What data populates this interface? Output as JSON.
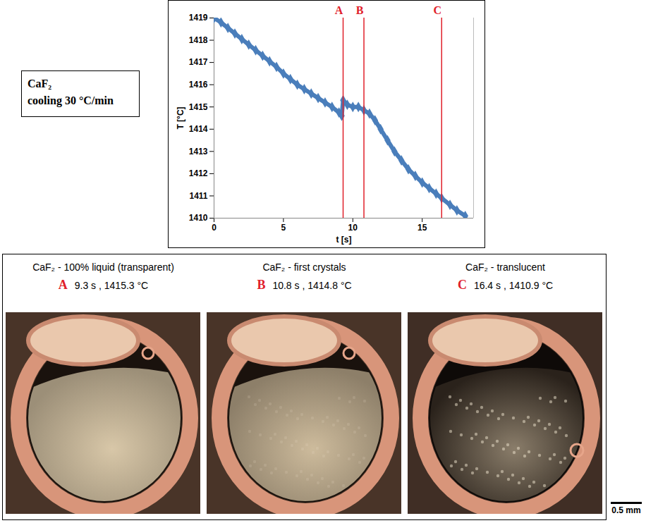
{
  "chart_data": {
    "type": "line",
    "marker": "diamond",
    "color": "#4a7ebb",
    "x_label": "t [s]",
    "y_label": "T [°C]",
    "x": [
      0,
      0.5,
      1,
      1.5,
      2,
      2.5,
      3,
      3.5,
      4,
      4.5,
      5,
      5.5,
      6,
      6.5,
      7,
      7.5,
      8,
      8.5,
      9,
      9.2,
      9.3,
      9.6,
      10,
      10.4,
      10.8,
      11.2,
      11.6,
      12,
      12.5,
      13,
      13.5,
      14,
      14.5,
      15,
      15.5,
      16,
      16.4,
      17,
      17.5,
      18.1
    ],
    "values": [
      1419.0,
      1418.8,
      1418.55,
      1418.3,
      1418.05,
      1417.8,
      1417.55,
      1417.3,
      1417.05,
      1416.8,
      1416.5,
      1416.25,
      1416.0,
      1415.8,
      1415.6,
      1415.4,
      1415.2,
      1415.0,
      1414.75,
      1414.6,
      1415.3,
      1415.1,
      1415.0,
      1415.0,
      1414.85,
      1414.7,
      1414.4,
      1414.0,
      1413.5,
      1413.0,
      1412.6,
      1412.2,
      1411.9,
      1411.6,
      1411.35,
      1411.1,
      1410.9,
      1410.6,
      1410.35,
      1410.1
    ],
    "xlim": [
      0,
      18.7
    ],
    "xticks": [
      0,
      5,
      10,
      15
    ],
    "ylim": [
      1410,
      1419
    ],
    "yticks": [
      1410,
      1411,
      1412,
      1413,
      1414,
      1415,
      1416,
      1417,
      1418,
      1419
    ],
    "grid": false,
    "events": [
      {
        "label": "A",
        "x": 9.3,
        "color": "#e0202a"
      },
      {
        "label": "B",
        "x": 10.8,
        "color": "#e0202a"
      },
      {
        "label": "C",
        "x": 16.4,
        "color": "#e0202a"
      }
    ]
  },
  "label_box": {
    "lines": [
      "CaF₂",
      "cooling 30 °C/min"
    ]
  },
  "photo_panels": [
    {
      "caption": "CaF₂ - 100% liquid (transparent)",
      "letter": "A",
      "reading": "9.3 s , 1415.3 °C"
    },
    {
      "caption": "CaF₂ - first crystals",
      "letter": "B",
      "reading": "10.8 s , 1414.8 °C"
    },
    {
      "caption": "CaF₂ - translucent",
      "letter": "C",
      "reading": "16.4 s , 1410.9 °C"
    }
  ],
  "scale_bar": "0.5 mm"
}
